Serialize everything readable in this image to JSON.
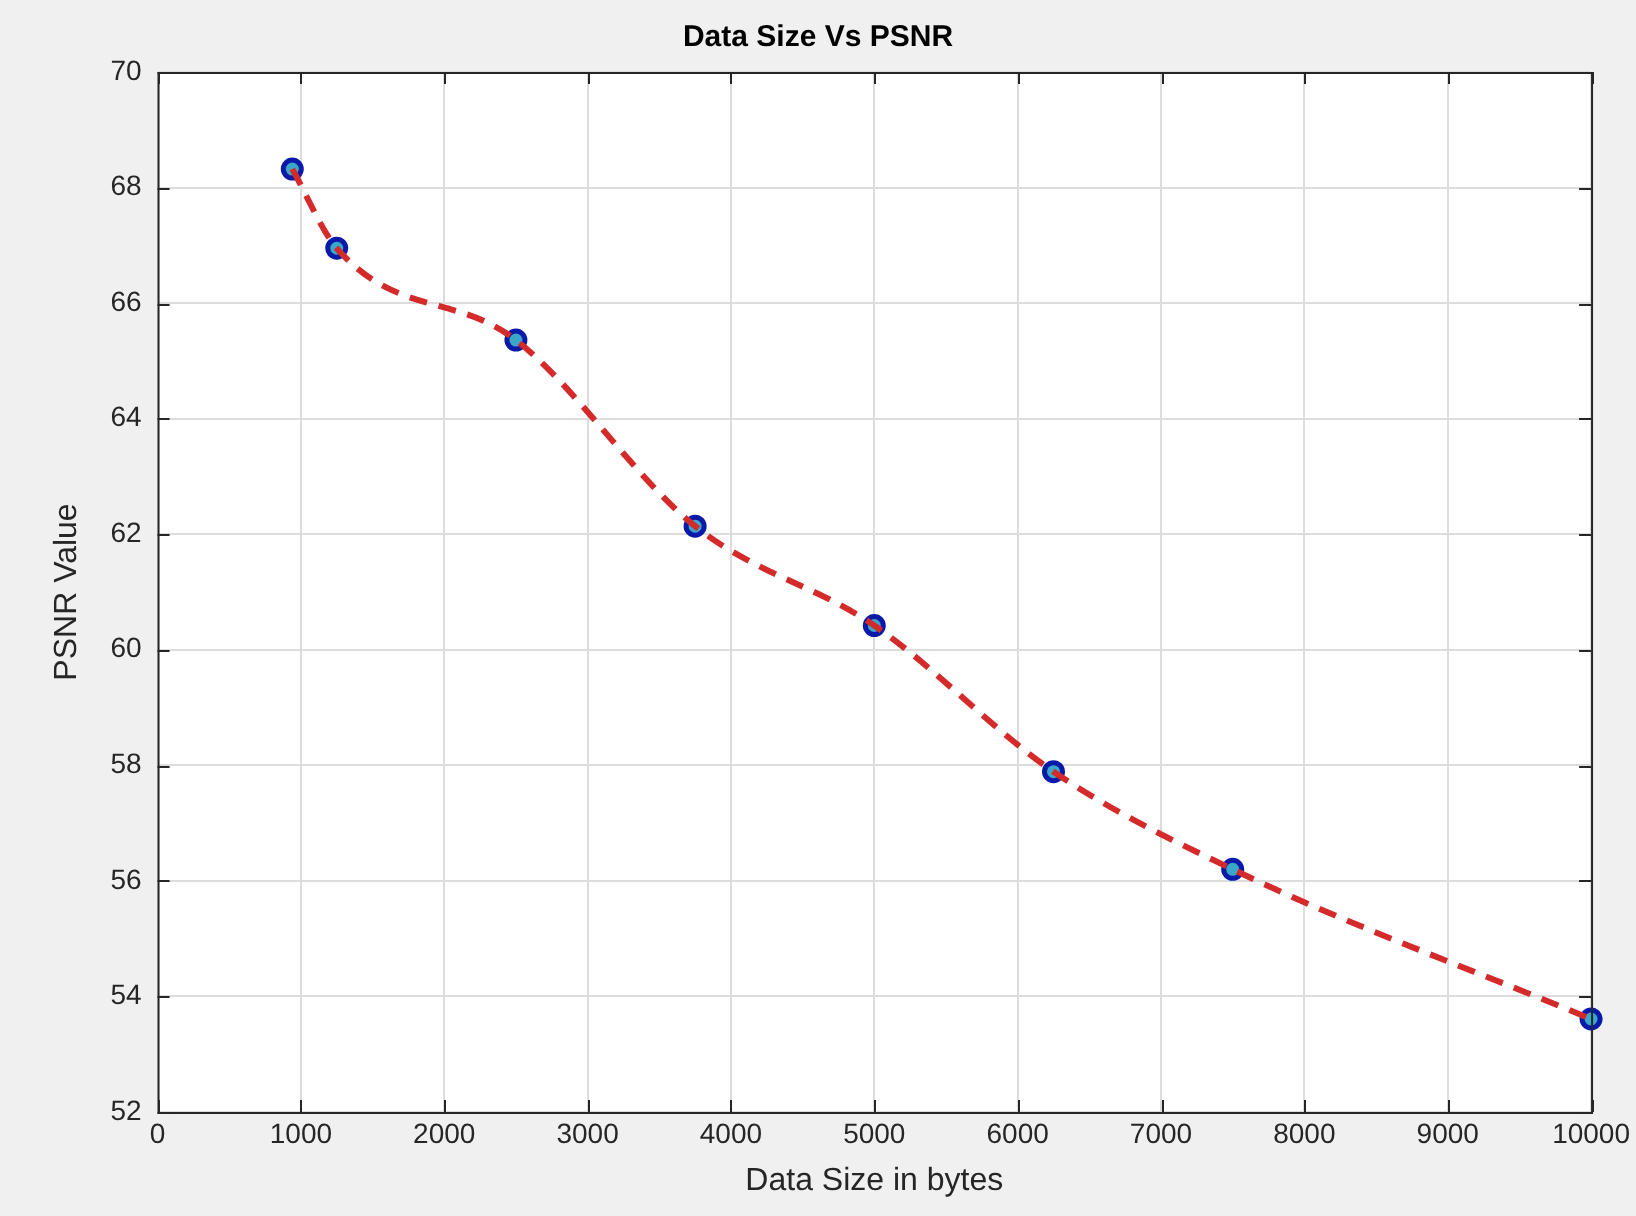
{
  "chart_data": {
    "type": "line",
    "title": "Data Size Vs PSNR",
    "xlabel": "Data Size in bytes",
    "ylabel": "PSNR Value",
    "x": [
      940,
      1250,
      2500,
      3750,
      5000,
      6250,
      7500,
      10000
    ],
    "series": [
      {
        "type": "line",
        "color": "#d42a2a",
        "line_style": "dashed",
        "marker": "none",
        "values": [
          68.32,
          66.95,
          65.36,
          62.14,
          60.42,
          57.89,
          56.2,
          53.61
        ]
      },
      {
        "type": "scatter",
        "color": "#0a1aa8",
        "marker": "circle",
        "values": [
          68.32,
          66.95,
          65.36,
          62.14,
          60.42,
          57.89,
          56.2,
          53.61
        ]
      }
    ],
    "xlim": [
      0,
      10000
    ],
    "xticks": [
      0,
      1000,
      2000,
      3000,
      4000,
      5000,
      6000,
      7000,
      8000,
      9000,
      10000
    ],
    "ylim": [
      52,
      70
    ],
    "yticks": [
      52,
      54,
      56,
      58,
      60,
      62,
      64,
      66,
      68,
      70
    ],
    "grid": true,
    "legend": false
  }
}
